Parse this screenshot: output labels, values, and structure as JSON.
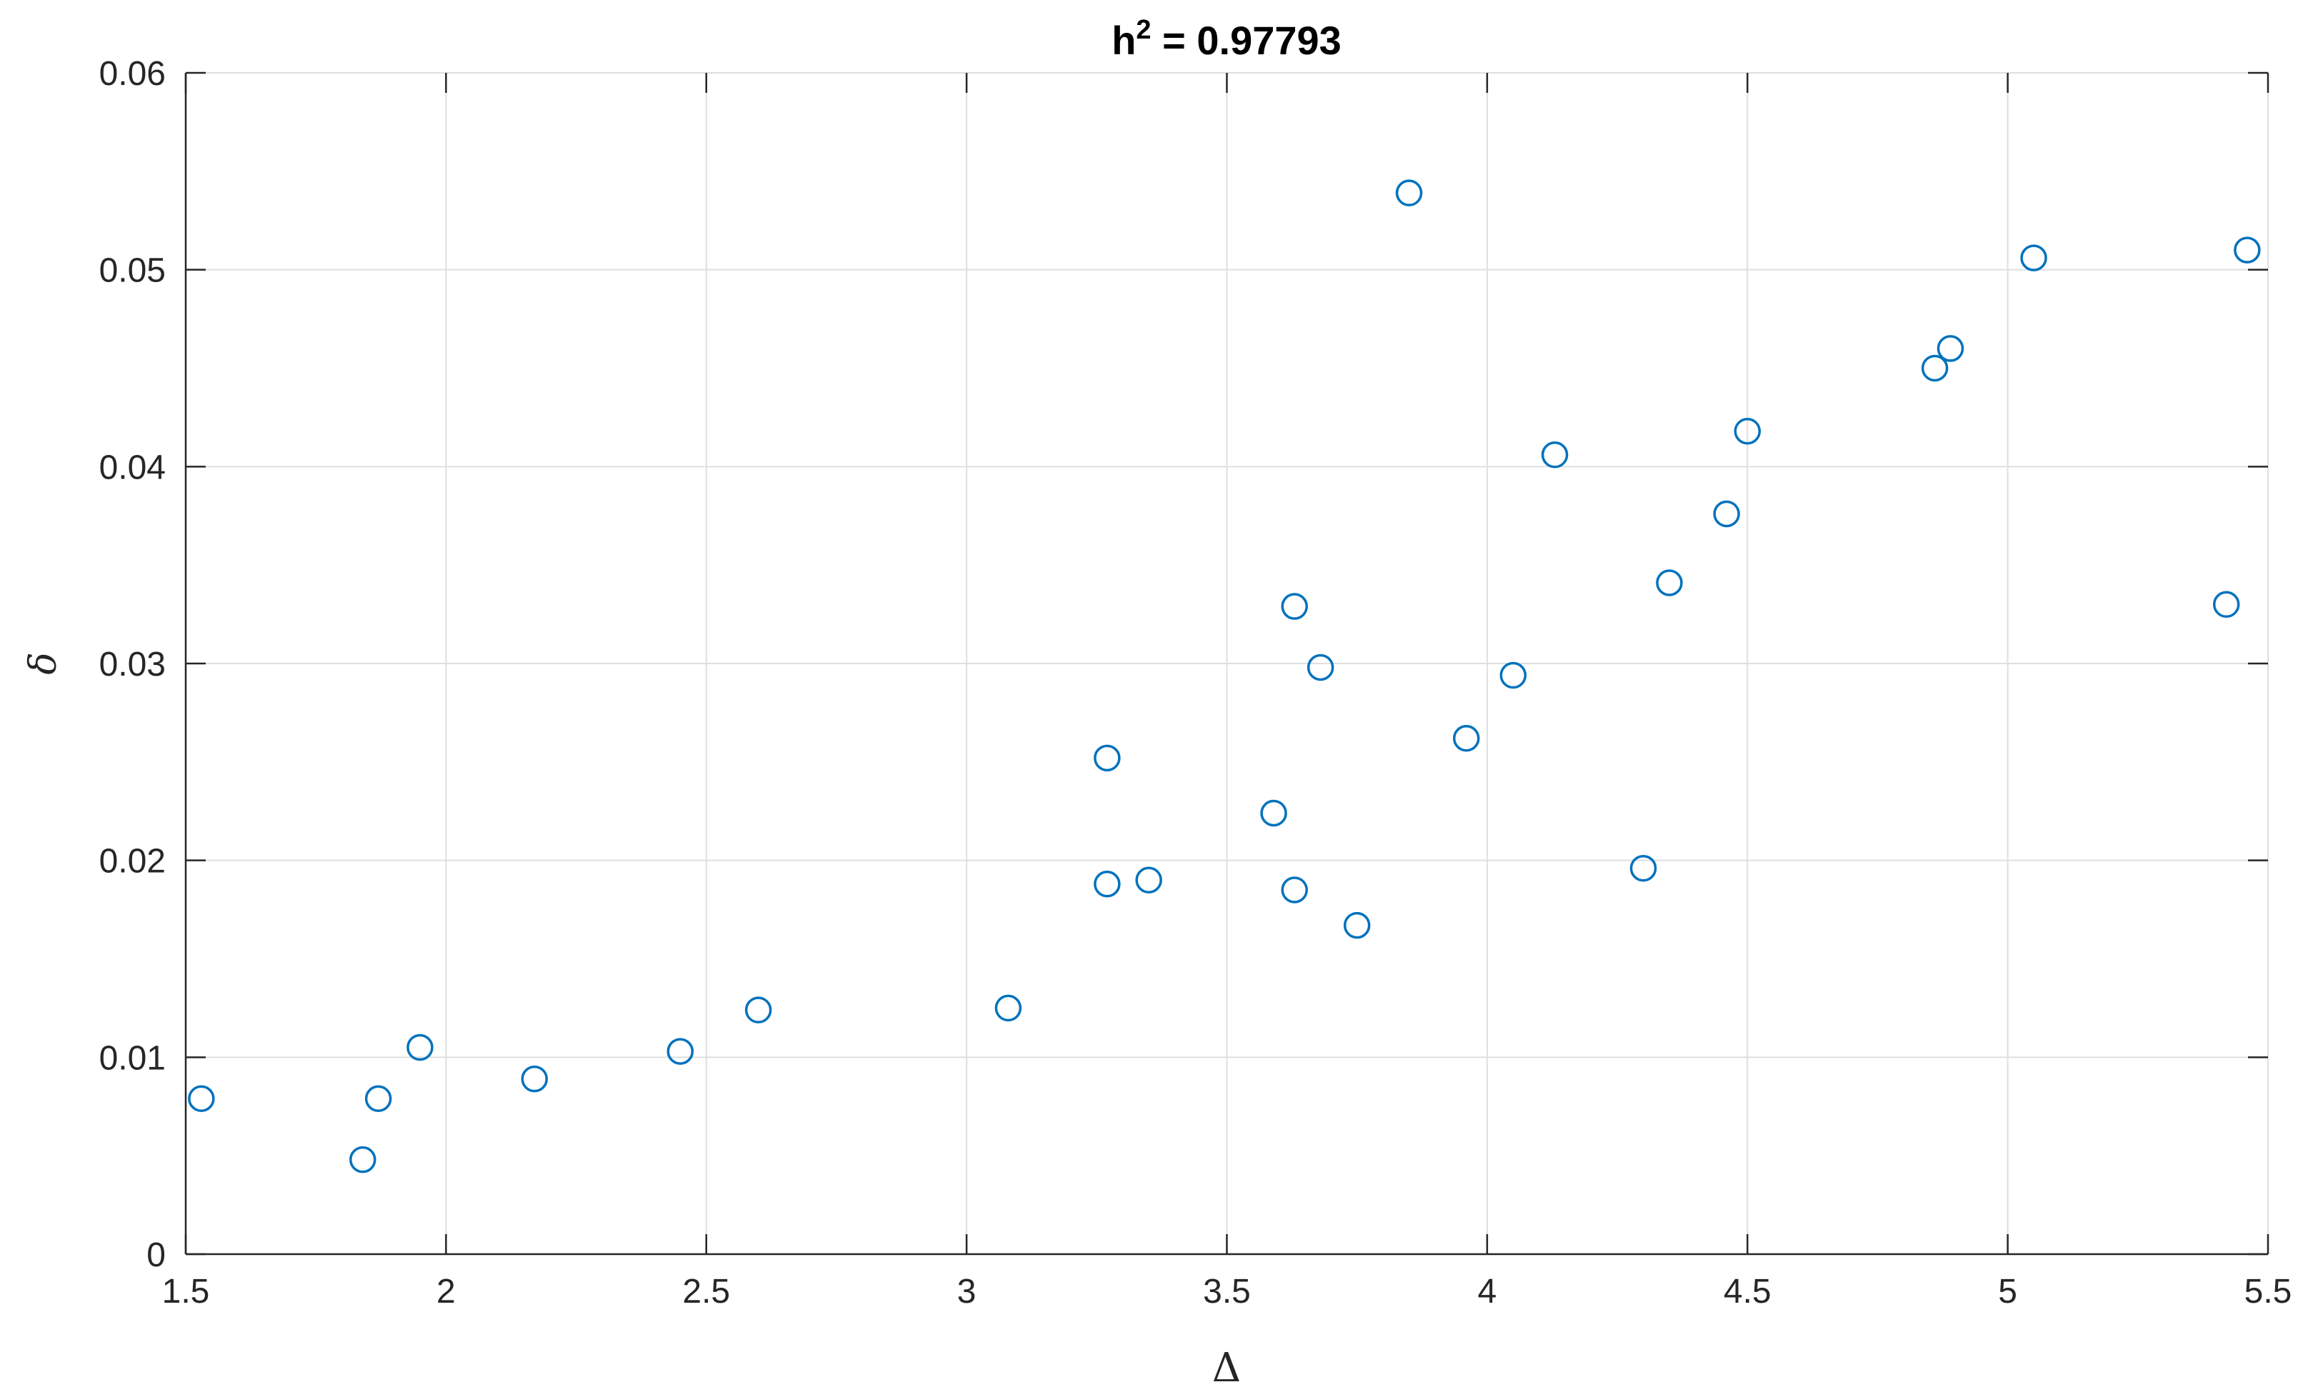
{
  "chart_data": {
    "type": "scatter",
    "title": {
      "base": "h",
      "superscript": "2",
      "rest": " = 0.97793"
    },
    "xlabel": "Δ",
    "ylabel": "δ",
    "xlim": [
      1.5,
      5.5
    ],
    "ylim": [
      0,
      0.06
    ],
    "xticks": [
      1.5,
      2,
      2.5,
      3,
      3.5,
      4,
      4.5,
      5,
      5.5
    ],
    "xtick_labels": [
      "1.5",
      "2",
      "2.5",
      "3",
      "3.5",
      "4",
      "4.5",
      "5",
      "5.5"
    ],
    "yticks": [
      0,
      0.01,
      0.02,
      0.03,
      0.04,
      0.05,
      0.06
    ],
    "ytick_labels": [
      "0",
      "0.01",
      "0.02",
      "0.03",
      "0.04",
      "0.05",
      "0.06"
    ],
    "grid": true,
    "marker_color": "#0072BD",
    "series": [
      {
        "marker": "open-circle",
        "points": [
          {
            "x": 1.53,
            "y": 0.0079
          },
          {
            "x": 1.84,
            "y": 0.0048
          },
          {
            "x": 1.87,
            "y": 0.0079
          },
          {
            "x": 1.95,
            "y": 0.0105
          },
          {
            "x": 2.17,
            "y": 0.0089
          },
          {
            "x": 2.45,
            "y": 0.0103
          },
          {
            "x": 2.6,
            "y": 0.0124
          },
          {
            "x": 3.08,
            "y": 0.0125
          },
          {
            "x": 3.27,
            "y": 0.0252
          },
          {
            "x": 3.27,
            "y": 0.0188
          },
          {
            "x": 3.35,
            "y": 0.019
          },
          {
            "x": 3.59,
            "y": 0.0224
          },
          {
            "x": 3.63,
            "y": 0.0329
          },
          {
            "x": 3.63,
            "y": 0.0185
          },
          {
            "x": 3.68,
            "y": 0.0298
          },
          {
            "x": 3.75,
            "y": 0.0167
          },
          {
            "x": 3.85,
            "y": 0.0539
          },
          {
            "x": 3.96,
            "y": 0.0262
          },
          {
            "x": 4.05,
            "y": 0.0294
          },
          {
            "x": 4.13,
            "y": 0.0406
          },
          {
            "x": 4.3,
            "y": 0.0196
          },
          {
            "x": 4.35,
            "y": 0.0341
          },
          {
            "x": 4.46,
            "y": 0.0376
          },
          {
            "x": 4.5,
            "y": 0.0418
          },
          {
            "x": 4.86,
            "y": 0.045
          },
          {
            "x": 4.89,
            "y": 0.046
          },
          {
            "x": 5.05,
            "y": 0.0506
          },
          {
            "x": 5.42,
            "y": 0.033
          },
          {
            "x": 5.46,
            "y": 0.051
          }
        ]
      }
    ]
  }
}
